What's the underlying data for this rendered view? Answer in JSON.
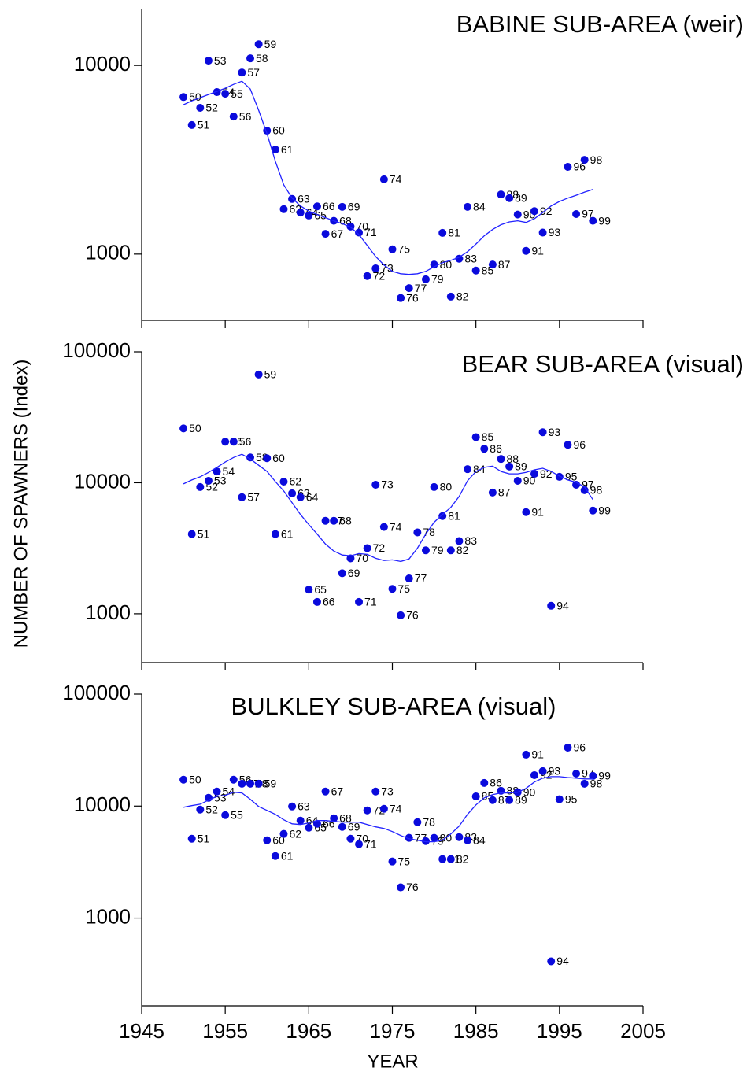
{
  "chart_data": [
    {
      "type": "scatter",
      "title": "BABINE SUB-AREA (weir)",
      "log_y": true,
      "xlim": [
        1945,
        2005
      ],
      "xticks": [
        1945,
        1955,
        1965,
        1975,
        1985,
        1995,
        2005
      ],
      "show_xtick_labels": false,
      "ylim": [
        500,
        20000
      ],
      "yticks": [
        1000,
        10000
      ],
      "x": [
        1950,
        1951,
        1952,
        1953,
        1954,
        1955,
        1956,
        1957,
        1958,
        1959,
        1960,
        1961,
        1962,
        1963,
        1964,
        1965,
        1966,
        1967,
        1968,
        1969,
        1970,
        1971,
        1972,
        1973,
        1974,
        1975,
        1976,
        1977,
        1978,
        1979,
        1980,
        1981,
        1982,
        1983,
        1984,
        1985,
        1986,
        1987,
        1988,
        1989,
        1990,
        1991,
        1992,
        1993,
        1994,
        1995,
        1996,
        1997,
        1998,
        1999
      ],
      "series": [
        {
          "mark": "dot",
          "color": "#0a0adc",
          "values": [
            6800,
            4830,
            5960,
            10600,
            7220,
            7080,
            5360,
            9170,
            10900,
            12950,
            4510,
            3580,
            1730,
            1960,
            1660,
            1600,
            1790,
            1280,
            1500,
            1780,
            1400,
            1300,
            765,
            840,
            2490,
            1060,
            585,
            660,
            null,
            735,
            880,
            1295,
            595,
            945,
            1780,
            818,
            null,
            880,
            2070,
            1980,
            1620,
            1040,
            1690,
            1300,
            null,
            null,
            2900,
            1630,
            3160,
            1500
          ],
          "point_labels": [
            "50",
            "51",
            "52",
            "53",
            "54",
            "55",
            "56",
            "57",
            "58",
            "59",
            "60",
            "61",
            "62",
            "63",
            "64",
            "65",
            "66",
            "67",
            "68",
            "69",
            "70",
            "71",
            "72",
            "73",
            "74",
            "75",
            "76",
            "77",
            null,
            "79",
            "80",
            "81",
            "82",
            "83",
            "84",
            "85",
            null,
            "87",
            "88",
            "89",
            "90",
            "91",
            "92",
            "93",
            null,
            null,
            "96",
            "97",
            "98",
            "99"
          ]
        },
        {
          "mark": "line",
          "color": "#2222ff",
          "values": [
            6190,
            6490,
            6750,
            7010,
            7290,
            7570,
            7940,
            8250,
            7500,
            5790,
            4340,
            3100,
            2330,
            1980,
            1800,
            1690,
            1620,
            1560,
            1500,
            1450,
            1390,
            1270,
            1110,
            970,
            875,
            810,
            787,
            780,
            787,
            810,
            857,
            900,
            926,
            962,
            1030,
            1130,
            1250,
            1350,
            1430,
            1480,
            1500,
            1470,
            1540,
            1660,
            1800,
            1900,
            1980,
            2050,
            2130,
            2200
          ]
        }
      ]
    },
    {
      "type": "scatter",
      "title": "BEAR SUB-AREA (visual)",
      "log_y": true,
      "y_label": "NUMBER OF SPAWNERS (Index)",
      "xlim": [
        1945,
        2005
      ],
      "xticks": [
        1945,
        1955,
        1965,
        1975,
        1985,
        1995,
        2005
      ],
      "show_xtick_labels": false,
      "ylim": [
        500,
        100000
      ],
      "yticks": [
        1000,
        10000,
        100000
      ],
      "x": [
        1950,
        1951,
        1952,
        1953,
        1954,
        1955,
        1956,
        1957,
        1958,
        1959,
        1960,
        1961,
        1962,
        1963,
        1964,
        1965,
        1966,
        1967,
        1968,
        1969,
        1970,
        1971,
        1972,
        1973,
        1974,
        1975,
        1976,
        1977,
        1978,
        1979,
        1980,
        1981,
        1982,
        1983,
        1984,
        1985,
        1986,
        1987,
        1988,
        1989,
        1990,
        1991,
        1992,
        1993,
        1994,
        1995,
        1996,
        1997,
        1998,
        1999
      ],
      "series": [
        {
          "mark": "dot",
          "color": "#0a0adc",
          "values": [
            26000,
            4060,
            9270,
            10350,
            12200,
            20600,
            20600,
            7760,
            15600,
            67100,
            15400,
            4060,
            10200,
            8300,
            7760,
            1530,
            1230,
            5130,
            5130,
            2040,
            2650,
            1230,
            3170,
            9660,
            4600,
            1550,
            973,
            1860,
            4180,
            3050,
            9270,
            5570,
            3050,
            3590,
            12700,
            22300,
            18200,
            8420,
            15200,
            13300,
            10350,
            5970,
            11700,
            24300,
            1150,
            11100,
            19500,
            9660,
            8780,
            6140
          ],
          "point_labels": [
            "50",
            "51",
            "52",
            "53",
            "54",
            "55",
            "56",
            "57",
            "58",
            "59",
            "60",
            "61",
            "62",
            "63",
            "64",
            "65",
            "66",
            "67",
            "68",
            "69",
            "70",
            "71",
            "72",
            "73",
            "74",
            "75",
            "76",
            "77",
            "78",
            "79",
            "80",
            "81",
            "82",
            "83",
            "84",
            "85",
            "86",
            "87",
            "88",
            "89",
            "90",
            "91",
            "92",
            "93",
            "94",
            "95",
            "96",
            "97",
            "98",
            "99"
          ]
        },
        {
          "mark": "line",
          "color": "#2222ff",
          "values": [
            9800,
            10500,
            11100,
            12000,
            13100,
            14400,
            15600,
            16500,
            15200,
            13600,
            12200,
            10200,
            8650,
            7050,
            5730,
            4800,
            4060,
            3400,
            3010,
            2810,
            2770,
            2880,
            2840,
            2650,
            2550,
            2580,
            2510,
            2620,
            3170,
            4060,
            5000,
            5730,
            6490,
            7870,
            10350,
            12200,
            13100,
            13400,
            12200,
            11700,
            11700,
            12000,
            12550,
            12900,
            12200,
            11250,
            10500,
            10070,
            9270,
            7440
          ]
        }
      ]
    },
    {
      "type": "scatter",
      "title": "BULKLEY SUB-AREA (visual)",
      "log_y": true,
      "x_label": "YEAR",
      "xlim": [
        1945,
        2005
      ],
      "xticks": [
        1945,
        1955,
        1965,
        1975,
        1985,
        1995,
        2005
      ],
      "show_xtick_labels": true,
      "ylim": [
        200,
        100000
      ],
      "yticks": [
        1000,
        10000,
        100000
      ],
      "x": [
        1950,
        1951,
        1952,
        1953,
        1954,
        1955,
        1956,
        1957,
        1958,
        1959,
        1960,
        1961,
        1962,
        1963,
        1964,
        1965,
        1966,
        1967,
        1968,
        1969,
        1970,
        1971,
        1972,
        1973,
        1974,
        1975,
        1976,
        1977,
        1978,
        1979,
        1980,
        1981,
        1982,
        1983,
        1984,
        1985,
        1986,
        1987,
        1988,
        1989,
        1990,
        1991,
        1992,
        1993,
        1994,
        1995,
        1996,
        1997,
        1998,
        1999
      ],
      "series": [
        {
          "mark": "dot",
          "color": "#0a0adc",
          "values": [
            17200,
            5110,
            9300,
            11850,
            13500,
            8300,
            17200,
            15850,
            15850,
            15850,
            4950,
            3580,
            5640,
            9920,
            7420,
            6410,
            6950,
            13500,
            7790,
            6520,
            5110,
            4570,
            9150,
            13500,
            9450,
            3200,
            1880,
            5200,
            7180,
            4870,
            5200,
            3360,
            3360,
            5280,
            4950,
            12200,
            16100,
            11300,
            13700,
            11300,
            13300,
            28800,
            18900,
            20500,
            411,
            11500,
            33300,
            19500,
            15850,
            18600
          ],
          "point_labels": [
            "50",
            "51",
            "52",
            "53",
            "54",
            "55",
            "56",
            "57",
            "58",
            "59",
            "60",
            "61",
            "62",
            "63",
            "64",
            "65",
            "66",
            "67",
            "68",
            "69",
            "70",
            "71",
            "72",
            "73",
            "74",
            "75",
            "76",
            "77",
            "78",
            "79",
            "80",
            "81",
            "82",
            "83",
            "84",
            "85",
            "86",
            "87",
            "88",
            "89",
            "90",
            "91",
            "92",
            "93",
            "94",
            "95",
            "96",
            "97",
            "98",
            "99"
          ]
        },
        {
          "mark": "line",
          "color": "#2222ff",
          "values": [
            9760,
            10090,
            10400,
            11300,
            12200,
            12450,
            13300,
            13100,
            11500,
            9920,
            9150,
            8440,
            7540,
            6950,
            6840,
            7060,
            7420,
            7420,
            7300,
            7180,
            7180,
            7180,
            6840,
            6520,
            6310,
            5920,
            5460,
            5110,
            4950,
            4800,
            4800,
            4950,
            5640,
            6630,
            8440,
            10250,
            11850,
            12650,
            13100,
            13100,
            13300,
            14400,
            16400,
            17750,
            18300,
            18300,
            18000,
            17750,
            17460,
            17460
          ]
        }
      ]
    }
  ]
}
